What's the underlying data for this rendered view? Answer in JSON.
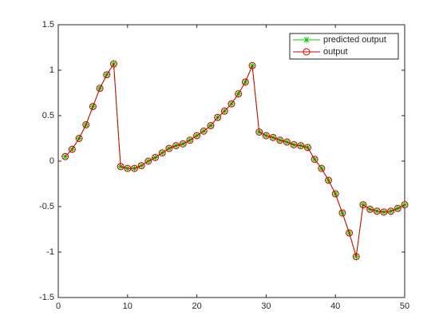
{
  "chart_data": {
    "type": "line",
    "x": [
      1,
      2,
      3,
      4,
      5,
      6,
      7,
      8,
      9,
      10,
      11,
      12,
      13,
      14,
      15,
      16,
      17,
      18,
      19,
      20,
      21,
      22,
      23,
      24,
      25,
      26,
      27,
      28,
      29,
      30,
      31,
      32,
      33,
      34,
      35,
      36,
      37,
      38,
      39,
      40,
      41,
      42,
      43,
      44,
      45,
      46,
      47,
      48,
      49,
      50
    ],
    "series": [
      {
        "name": "predicted output",
        "color": "#00cc00",
        "marker": "*",
        "values": [
          0.05,
          0.13,
          0.25,
          0.4,
          0.6,
          0.8,
          0.95,
          1.07,
          -0.06,
          -0.08,
          -0.08,
          -0.05,
          0.0,
          0.04,
          0.09,
          0.14,
          0.17,
          0.19,
          0.23,
          0.28,
          0.33,
          0.39,
          0.48,
          0.55,
          0.63,
          0.74,
          0.87,
          1.05,
          0.32,
          0.28,
          0.26,
          0.23,
          0.21,
          0.18,
          0.17,
          0.15,
          0.02,
          -0.08,
          -0.21,
          -0.36,
          -0.57,
          -0.79,
          -1.05,
          -0.48,
          -0.53,
          -0.55,
          -0.56,
          -0.55,
          -0.52,
          -0.48
        ]
      },
      {
        "name": "output",
        "color": "#dd0000",
        "marker": "o",
        "values": [
          0.05,
          0.13,
          0.25,
          0.4,
          0.6,
          0.8,
          0.95,
          1.07,
          -0.06,
          -0.08,
          -0.08,
          -0.05,
          0.0,
          0.04,
          0.09,
          0.14,
          0.17,
          0.19,
          0.23,
          0.28,
          0.33,
          0.39,
          0.48,
          0.55,
          0.63,
          0.74,
          0.87,
          1.05,
          0.32,
          0.28,
          0.26,
          0.23,
          0.21,
          0.18,
          0.17,
          0.15,
          0.02,
          -0.08,
          -0.21,
          -0.36,
          -0.57,
          -0.79,
          -1.05,
          -0.48,
          -0.53,
          -0.55,
          -0.56,
          -0.55,
          -0.52,
          -0.48
        ]
      }
    ],
    "xlim": [
      0,
      50
    ],
    "xticks": [
      0,
      10,
      20,
      30,
      40,
      50
    ],
    "ylim": [
      -1.5,
      1.5
    ],
    "yticks": [
      -1.5,
      -1,
      -0.5,
      0,
      0.5,
      1,
      1.5
    ],
    "legend": "upper-right"
  }
}
